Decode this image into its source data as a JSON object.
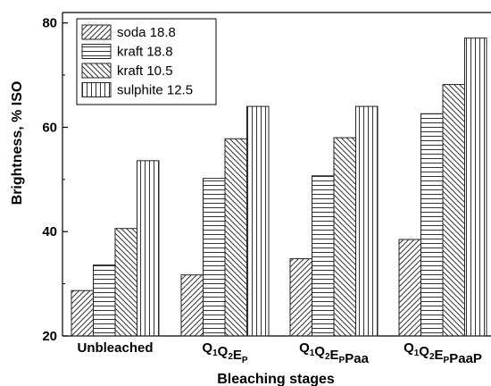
{
  "chart_data": {
    "type": "bar",
    "title": "",
    "xlabel": "Bleaching stages",
    "ylabel": "Brightness, % ISO",
    "ylim": [
      20,
      82
    ],
    "yticks": [
      20,
      40,
      60,
      80
    ],
    "categories": [
      {
        "parts": [
          [
            "Unbleached",
            ""
          ]
        ]
      },
      {
        "parts": [
          [
            "Q",
            "1"
          ],
          [
            "Q",
            "2"
          ],
          [
            "E",
            "P"
          ]
        ]
      },
      {
        "parts": [
          [
            "Q",
            "1"
          ],
          [
            "Q",
            "2"
          ],
          [
            "E",
            "P"
          ],
          [
            "Paa",
            ""
          ]
        ]
      },
      {
        "parts": [
          [
            "Q",
            "1"
          ],
          [
            "Q",
            "2"
          ],
          [
            "E",
            "P"
          ],
          [
            "PaaP",
            ""
          ]
        ]
      }
    ],
    "series": [
      {
        "name": "soda 18.8",
        "pattern": "diag-right",
        "values": [
          28.7,
          31.7,
          34.8,
          38.5
        ]
      },
      {
        "name": "kraft 18.8",
        "pattern": "horizontal",
        "values": [
          33.6,
          50.2,
          50.7,
          62.6
        ]
      },
      {
        "name": "kraft 10.5",
        "pattern": "diag-left",
        "values": [
          40.6,
          57.8,
          58.0,
          68.2
        ]
      },
      {
        "name": "sulphite 12.5",
        "pattern": "vertical",
        "values": [
          53.6,
          64.0,
          64.0,
          77.1
        ]
      }
    ],
    "legend_position": "top-left",
    "grid": false
  }
}
